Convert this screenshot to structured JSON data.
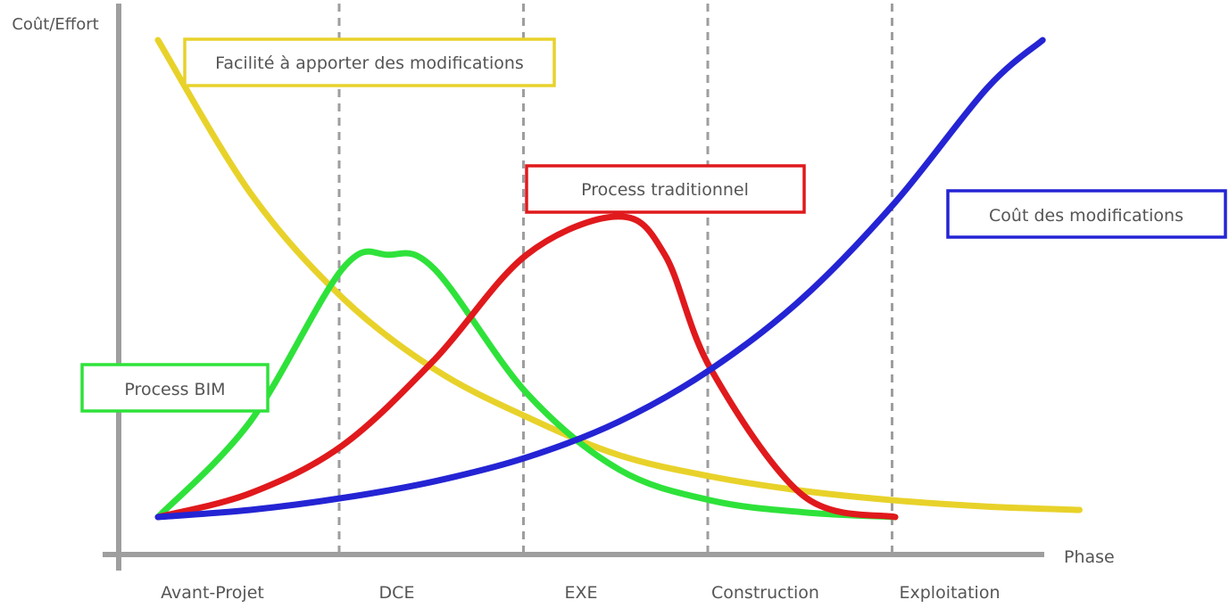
{
  "chart_data": {
    "type": "line",
    "title": "",
    "xlabel": "Phase",
    "ylabel": "Coût/Effort",
    "xlim": [
      0,
      5
    ],
    "ylim": [
      0,
      10
    ],
    "grid": "vertical dashed separators between phases",
    "categories": [
      "Avant-Projet",
      "DCE",
      "EXE",
      "Construction",
      "Exploitation"
    ],
    "series": [
      {
        "name": "Facilité à apporter des modifications",
        "color": "#e8d22a",
        "x": [
          0,
          0.5,
          1,
          1.5,
          2,
          2.5,
          3,
          3.5,
          4,
          4.5,
          5
        ],
        "y": [
          10,
          6.8,
          4.6,
          3.1,
          2.1,
          1.3,
          0.85,
          0.55,
          0.35,
          0.22,
          0.15
        ]
      },
      {
        "name": "Process BIM",
        "color": "#2ee23a",
        "x": [
          0,
          0.5,
          1,
          1.25,
          1.5,
          2,
          2.5,
          3,
          3.5,
          4
        ],
        "y": [
          0,
          2.0,
          5.2,
          5.5,
          5.2,
          2.6,
          1.0,
          0.35,
          0.1,
          0
        ]
      },
      {
        "name": "Process traditionnel",
        "color": "#e0191c",
        "x": [
          0,
          0.5,
          1,
          1.5,
          2,
          2.5,
          2.75,
          3,
          3.5,
          4
        ],
        "y": [
          0,
          0.5,
          1.5,
          3.3,
          5.5,
          6.3,
          5.5,
          3.1,
          0.45,
          0
        ]
      },
      {
        "name": "Coût des modifications",
        "color": "#2424d4",
        "x": [
          0,
          0.5,
          1,
          1.5,
          2,
          2.5,
          3,
          3.5,
          4,
          4.5,
          4.8
        ],
        "y": [
          0,
          0.15,
          0.4,
          0.75,
          1.25,
          2.0,
          3.1,
          4.6,
          6.6,
          9.0,
          10
        ]
      }
    ],
    "annotations": [
      {
        "text": "Facilité à apporter des modifications",
        "color": "#e8d22a"
      },
      {
        "text": "Process traditionnel",
        "color": "#e0191c"
      },
      {
        "text": "Coût des modifications",
        "color": "#2424d4"
      },
      {
        "text": "Process BIM",
        "color": "#2ee23a"
      }
    ]
  }
}
